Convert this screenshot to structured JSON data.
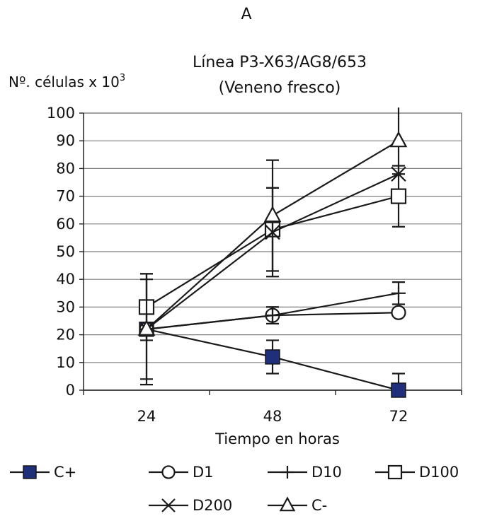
{
  "panel_label": "A",
  "chart_data": {
    "type": "line",
    "title": "Línea P3-X63/AG8/653",
    "subtitle": "(Veneno fresco)",
    "ylabel_main": "Nº. células x 10",
    "ylabel_exp": "3",
    "xlabel": "Tiempo en horas",
    "categories": [
      "24",
      "48",
      "72"
    ],
    "ylim": [
      0,
      100
    ],
    "yticks": [
      "0",
      "10",
      "20",
      "30",
      "40",
      "50",
      "60",
      "70",
      "80",
      "90",
      "100"
    ],
    "grid": true,
    "legend_position": "bottom",
    "series": [
      {
        "name": "C+",
        "marker": "filled-square",
        "values": [
          22,
          12,
          0
        ],
        "errors": [
          18,
          6,
          6
        ]
      },
      {
        "name": "D1",
        "marker": "circle",
        "values": [
          22,
          27,
          28
        ],
        "errors": [
          0,
          3,
          0
        ]
      },
      {
        "name": "D10",
        "marker": "plus",
        "values": [
          22,
          27,
          35
        ],
        "errors": [
          0,
          3,
          4
        ]
      },
      {
        "name": "D100",
        "marker": "square",
        "values": [
          30,
          58,
          70
        ],
        "errors": [
          12,
          15,
          11
        ]
      },
      {
        "name": "D200",
        "marker": "x",
        "values": [
          22,
          57,
          78
        ],
        "errors": [
          0,
          16,
          0
        ]
      },
      {
        "name": "C-",
        "marker": "triangle",
        "values": [
          22,
          63,
          90
        ],
        "errors": [
          20,
          20,
          12
        ]
      }
    ]
  }
}
